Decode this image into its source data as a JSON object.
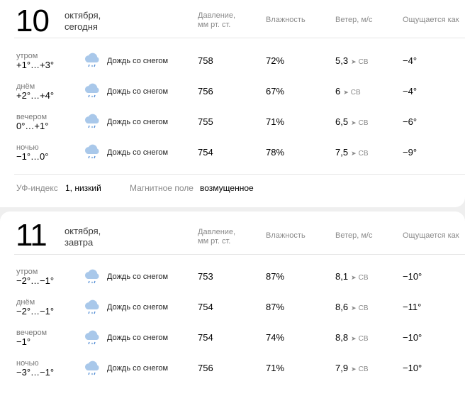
{
  "headers": {
    "pressure": [
      "Давление,",
      "мм рт. ст."
    ],
    "humidity": "Влажность",
    "wind": "Ветер, м/с",
    "feels": "Ощущается как"
  },
  "days": [
    {
      "day": "10",
      "month": "октября,",
      "rel": "сегодня",
      "rows": [
        {
          "tod": "утром",
          "temp": "+1°…+3°",
          "cond": "Дождь со снегом",
          "pressure": "758",
          "humidity": "72%",
          "wind": "5,3",
          "dir": "СВ",
          "feels": "−4°"
        },
        {
          "tod": "днём",
          "temp": "+2°…+4°",
          "cond": "Дождь со снегом",
          "pressure": "756",
          "humidity": "67%",
          "wind": "6",
          "dir": "СВ",
          "feels": "−4°"
        },
        {
          "tod": "вечером",
          "temp": "0°…+1°",
          "cond": "Дождь со снегом",
          "pressure": "755",
          "humidity": "71%",
          "wind": "6,5",
          "dir": "СВ",
          "feels": "−6°"
        },
        {
          "tod": "ночью",
          "temp": "−1°…0°",
          "cond": "Дождь со снегом",
          "pressure": "754",
          "humidity": "78%",
          "wind": "7,5",
          "dir": "СВ",
          "feels": "−9°"
        }
      ],
      "uv_label": "УФ-индекс",
      "uv_value": "1, низкий",
      "mag_label": "Магнитное поле",
      "mag_value": "возмущенное"
    },
    {
      "day": "11",
      "month": "октября,",
      "rel": "завтра",
      "rows": [
        {
          "tod": "утром",
          "temp": "−2°…−1°",
          "cond": "Дождь со снегом",
          "pressure": "753",
          "humidity": "87%",
          "wind": "8,1",
          "dir": "СВ",
          "feels": "−10°"
        },
        {
          "tod": "днём",
          "temp": "−2°…−1°",
          "cond": "Дождь со снегом",
          "pressure": "754",
          "humidity": "87%",
          "wind": "8,6",
          "dir": "СВ",
          "feels": "−11°"
        },
        {
          "tod": "вечером",
          "temp": "−1°",
          "cond": "Дождь со снегом",
          "pressure": "754",
          "humidity": "74%",
          "wind": "8,8",
          "dir": "СВ",
          "feels": "−10°"
        },
        {
          "tod": "ночью",
          "temp": "−3°…−1°",
          "cond": "Дождь со снегом",
          "pressure": "756",
          "humidity": "71%",
          "wind": "7,9",
          "dir": "СВ",
          "feels": "−10°"
        }
      ]
    }
  ],
  "icons": {
    "weather": "cloud-rain-snow-icon",
    "wind": "wind-direction-arrow-icon"
  }
}
